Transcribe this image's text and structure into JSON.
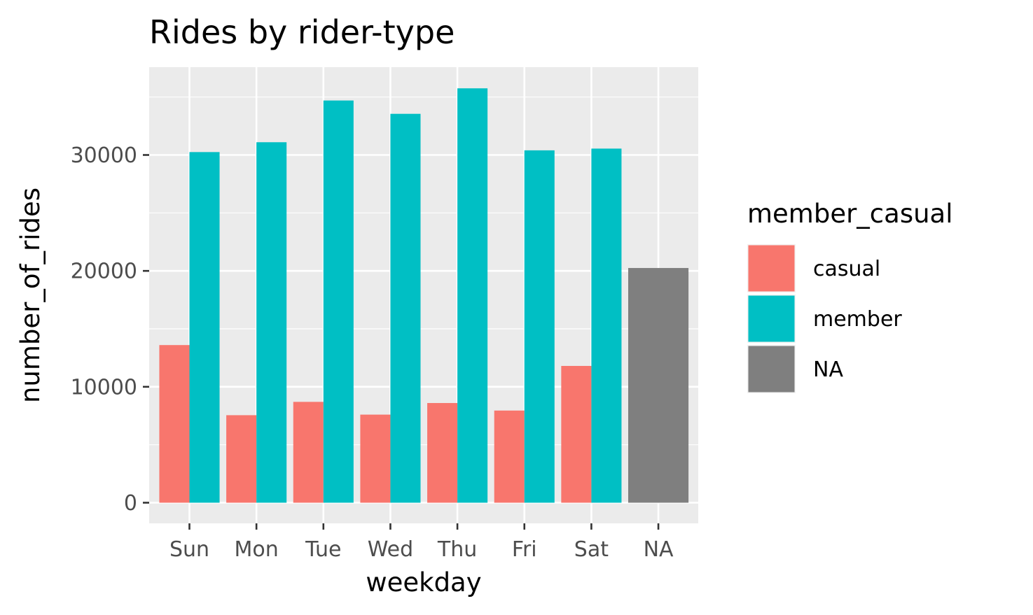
{
  "chart_data": {
    "type": "bar",
    "title": "Rides by rider-type",
    "xlabel": "weekday",
    "ylabel": "number_of_rides",
    "categories": [
      "Sun",
      "Mon",
      "Tue",
      "Wed",
      "Thu",
      "Fri",
      "Sat",
      "NA"
    ],
    "ylim": [
      0,
      36000
    ],
    "yticks": [
      0,
      10000,
      20000,
      30000
    ],
    "ytick_labels": [
      "0",
      "10000",
      "20000",
      "30000"
    ],
    "grid": true,
    "legend": {
      "title": "member_casual",
      "position": "right",
      "entries": [
        "casual",
        "member",
        "NA"
      ]
    },
    "series": [
      {
        "name": "casual",
        "color": "#F8766D",
        "values": [
          13600,
          7550,
          8700,
          7600,
          8600,
          7950,
          11800,
          null
        ]
      },
      {
        "name": "member",
        "color": "#00BFC4",
        "values": [
          30250,
          31100,
          34700,
          33550,
          35750,
          30400,
          30550,
          null
        ]
      },
      {
        "name": "NA",
        "color": "#7F7F7F",
        "values": [
          null,
          null,
          null,
          null,
          null,
          null,
          null,
          20250
        ]
      }
    ],
    "panel_background": "#EBEBEB",
    "grid_color": "#FFFFFF"
  }
}
